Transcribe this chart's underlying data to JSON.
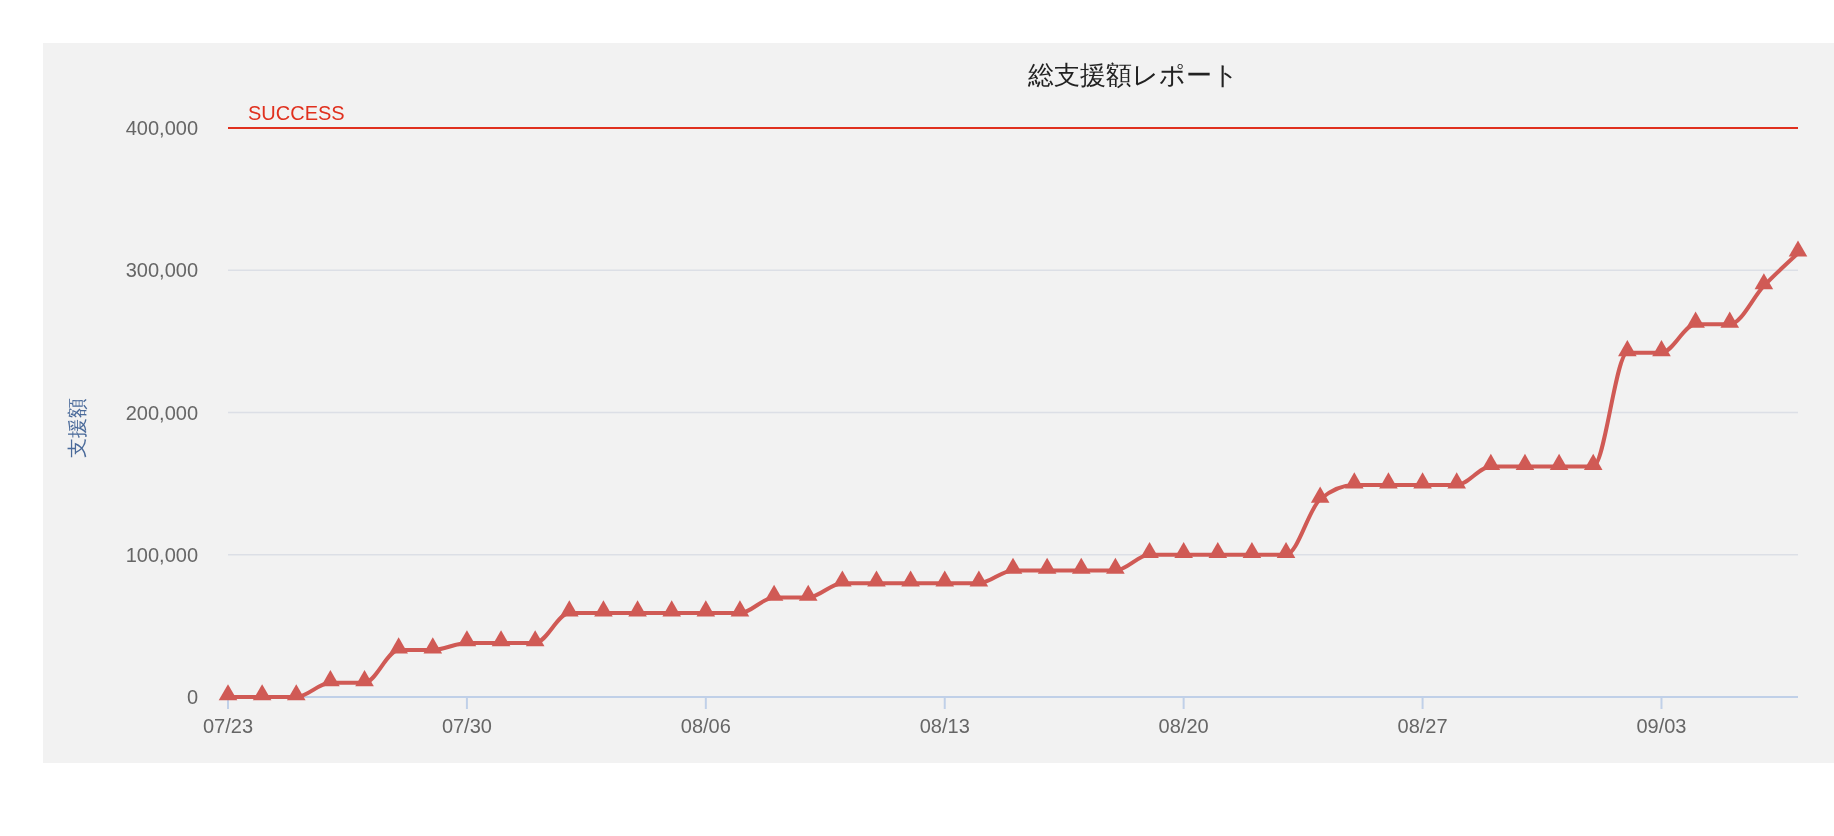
{
  "chart_data": {
    "type": "line",
    "title": "総支援額レポート",
    "ylabel": "支援額",
    "x": [
      "--07-23",
      "--07-24",
      "--07-25",
      "--07-26",
      "--07-27",
      "--07-28",
      "--07-29",
      "--07-30",
      "--07-31",
      "--08-01",
      "--08-02",
      "--08-03",
      "--08-04",
      "--08-05",
      "--08-06",
      "--08-07",
      "--08-08",
      "--08-09",
      "--08-10",
      "--08-11",
      "--08-12",
      "--08-13",
      "--08-14",
      "--08-15",
      "--08-16",
      "--08-17",
      "--08-18",
      "--08-19",
      "--08-20",
      "--08-21",
      "--08-22",
      "--08-23",
      "--08-24",
      "--08-25",
      "--08-26",
      "--08-27",
      "--08-28",
      "--08-29",
      "--08-30",
      "--08-31",
      "--09-01",
      "--09-02",
      "--09-03",
      "--09-04",
      "--09-05",
      "--09-06",
      "--09-07"
    ],
    "series": [
      {
        "color": "#d05a55",
        "values": [
          0,
          0,
          0,
          10000,
          10000,
          33000,
          33000,
          38000,
          38000,
          38000,
          59000,
          59000,
          59000,
          59000,
          59000,
          59000,
          70000,
          70000,
          80000,
          80000,
          80000,
          80000,
          80000,
          89000,
          89000,
          89000,
          89000,
          100000,
          100000,
          100000,
          100000,
          100000,
          139000,
          149000,
          149000,
          149000,
          149000,
          162000,
          162000,
          162000,
          162000,
          242000,
          242000,
          262000,
          262000,
          289000,
          312000
        ]
      }
    ],
    "xlim": [
      "--07-23",
      "--09-07"
    ],
    "ylim": [
      0,
      400000
    ],
    "yticks": [
      {
        "value": 0,
        "label": "0"
      },
      {
        "value": 100000,
        "label": "100,000"
      },
      {
        "value": 200000,
        "label": "200,000"
      },
      {
        "value": 300000,
        "label": "300,000"
      },
      {
        "value": 400000,
        "label": "400,000"
      }
    ],
    "xticks": [
      {
        "value": "--07-23",
        "label": "07/23"
      },
      {
        "value": "--07-30",
        "label": "07/30"
      },
      {
        "value": "--08-06",
        "label": "08/06"
      },
      {
        "value": "--08-13",
        "label": "08/13"
      },
      {
        "value": "--08-20",
        "label": "08/20"
      },
      {
        "value": "--08-27",
        "label": "08/27"
      },
      {
        "value": "--09-03",
        "label": "09/03"
      }
    ],
    "grid": "y",
    "marker": "triangle",
    "line_style": "solid",
    "ref_lines": [
      {
        "axis": "y",
        "value": 400000,
        "label": "SUCCESS",
        "color": "#e0301e"
      }
    ]
  }
}
